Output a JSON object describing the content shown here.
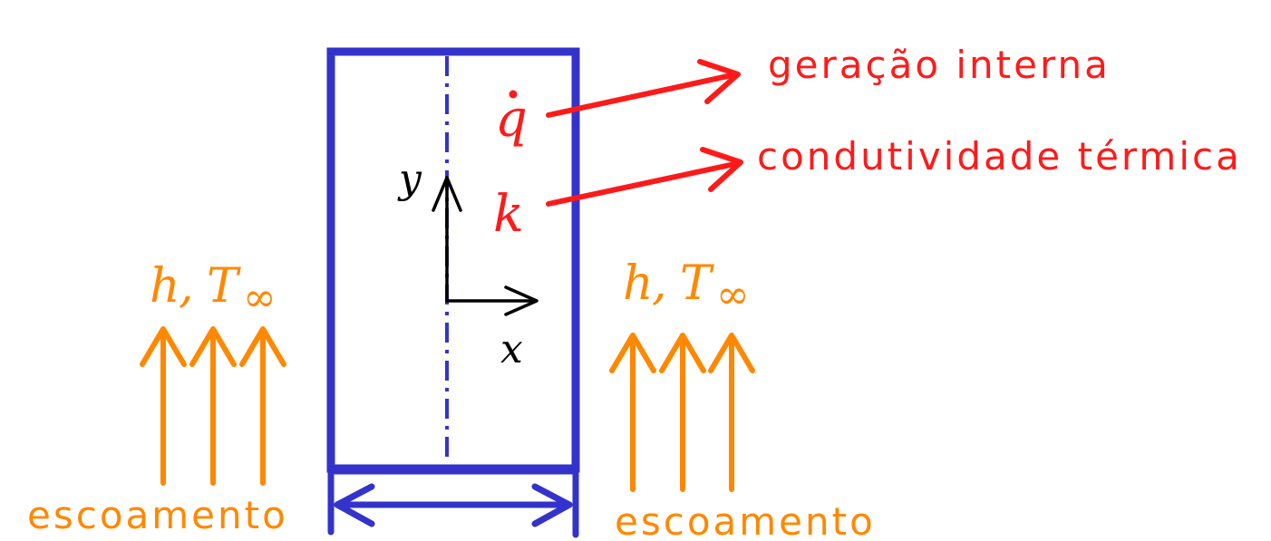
{
  "symbols": {
    "qdot_base": "q",
    "qdot_dot": "·",
    "k": "k",
    "y_axis": "y",
    "x_axis": "x",
    "h_left": "h",
    "T_left": "T",
    "inf_left": "∞",
    "h_right": "h",
    "T_right": "T",
    "inf_right": "∞",
    "comma": ","
  },
  "labels": {
    "generation": "geração interna",
    "conductivity": "condutividade térmica",
    "flow_left": "escoamento",
    "flow_right": "escoamento"
  },
  "colors": {
    "plate": "#3333cc",
    "annotation": "#ff1a1a",
    "flow": "#ff8800",
    "axes": "#000000"
  }
}
